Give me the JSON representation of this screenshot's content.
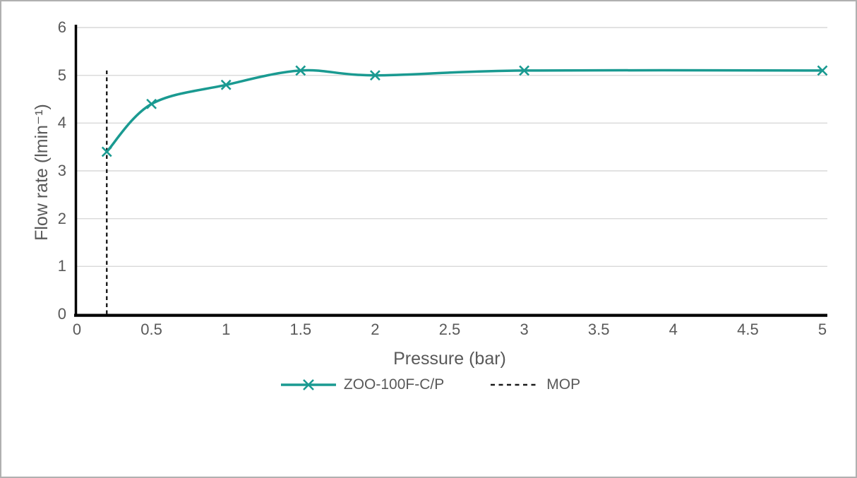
{
  "chart_data": {
    "type": "line",
    "title": "",
    "xlabel": "Pressure (bar)",
    "ylabel": "Flow rate (lmin⁻¹)",
    "xlim": [
      0,
      5
    ],
    "ylim": [
      0,
      6
    ],
    "x_ticks": [
      0,
      0.5,
      1,
      1.5,
      2,
      2.5,
      3,
      3.5,
      4,
      4.5,
      5
    ],
    "y_ticks": [
      0,
      1,
      2,
      3,
      4,
      5,
      6
    ],
    "grid": "horizontal",
    "legend_position": "bottom",
    "series": [
      {
        "name": "ZOO-100F-C/P",
        "type": "smooth-line",
        "marker": "x",
        "color": "#1a9a91",
        "x": [
          0.2,
          0.5,
          1,
          1.5,
          2,
          3,
          5
        ],
        "y": [
          3.4,
          4.4,
          4.8,
          5.1,
          5.0,
          5.1,
          5.1
        ]
      },
      {
        "name": "MOP",
        "type": "vertical-dashed-line",
        "color": "#1a1a1a",
        "x": 0.2,
        "y_from": 0,
        "y_to": 5.1
      }
    ]
  },
  "colors": {
    "gridline": "#d9d9d9",
    "axis": "#000000",
    "tick_text": "#595959",
    "frame_border": "#b0b0b0",
    "background": "#ffffff"
  }
}
